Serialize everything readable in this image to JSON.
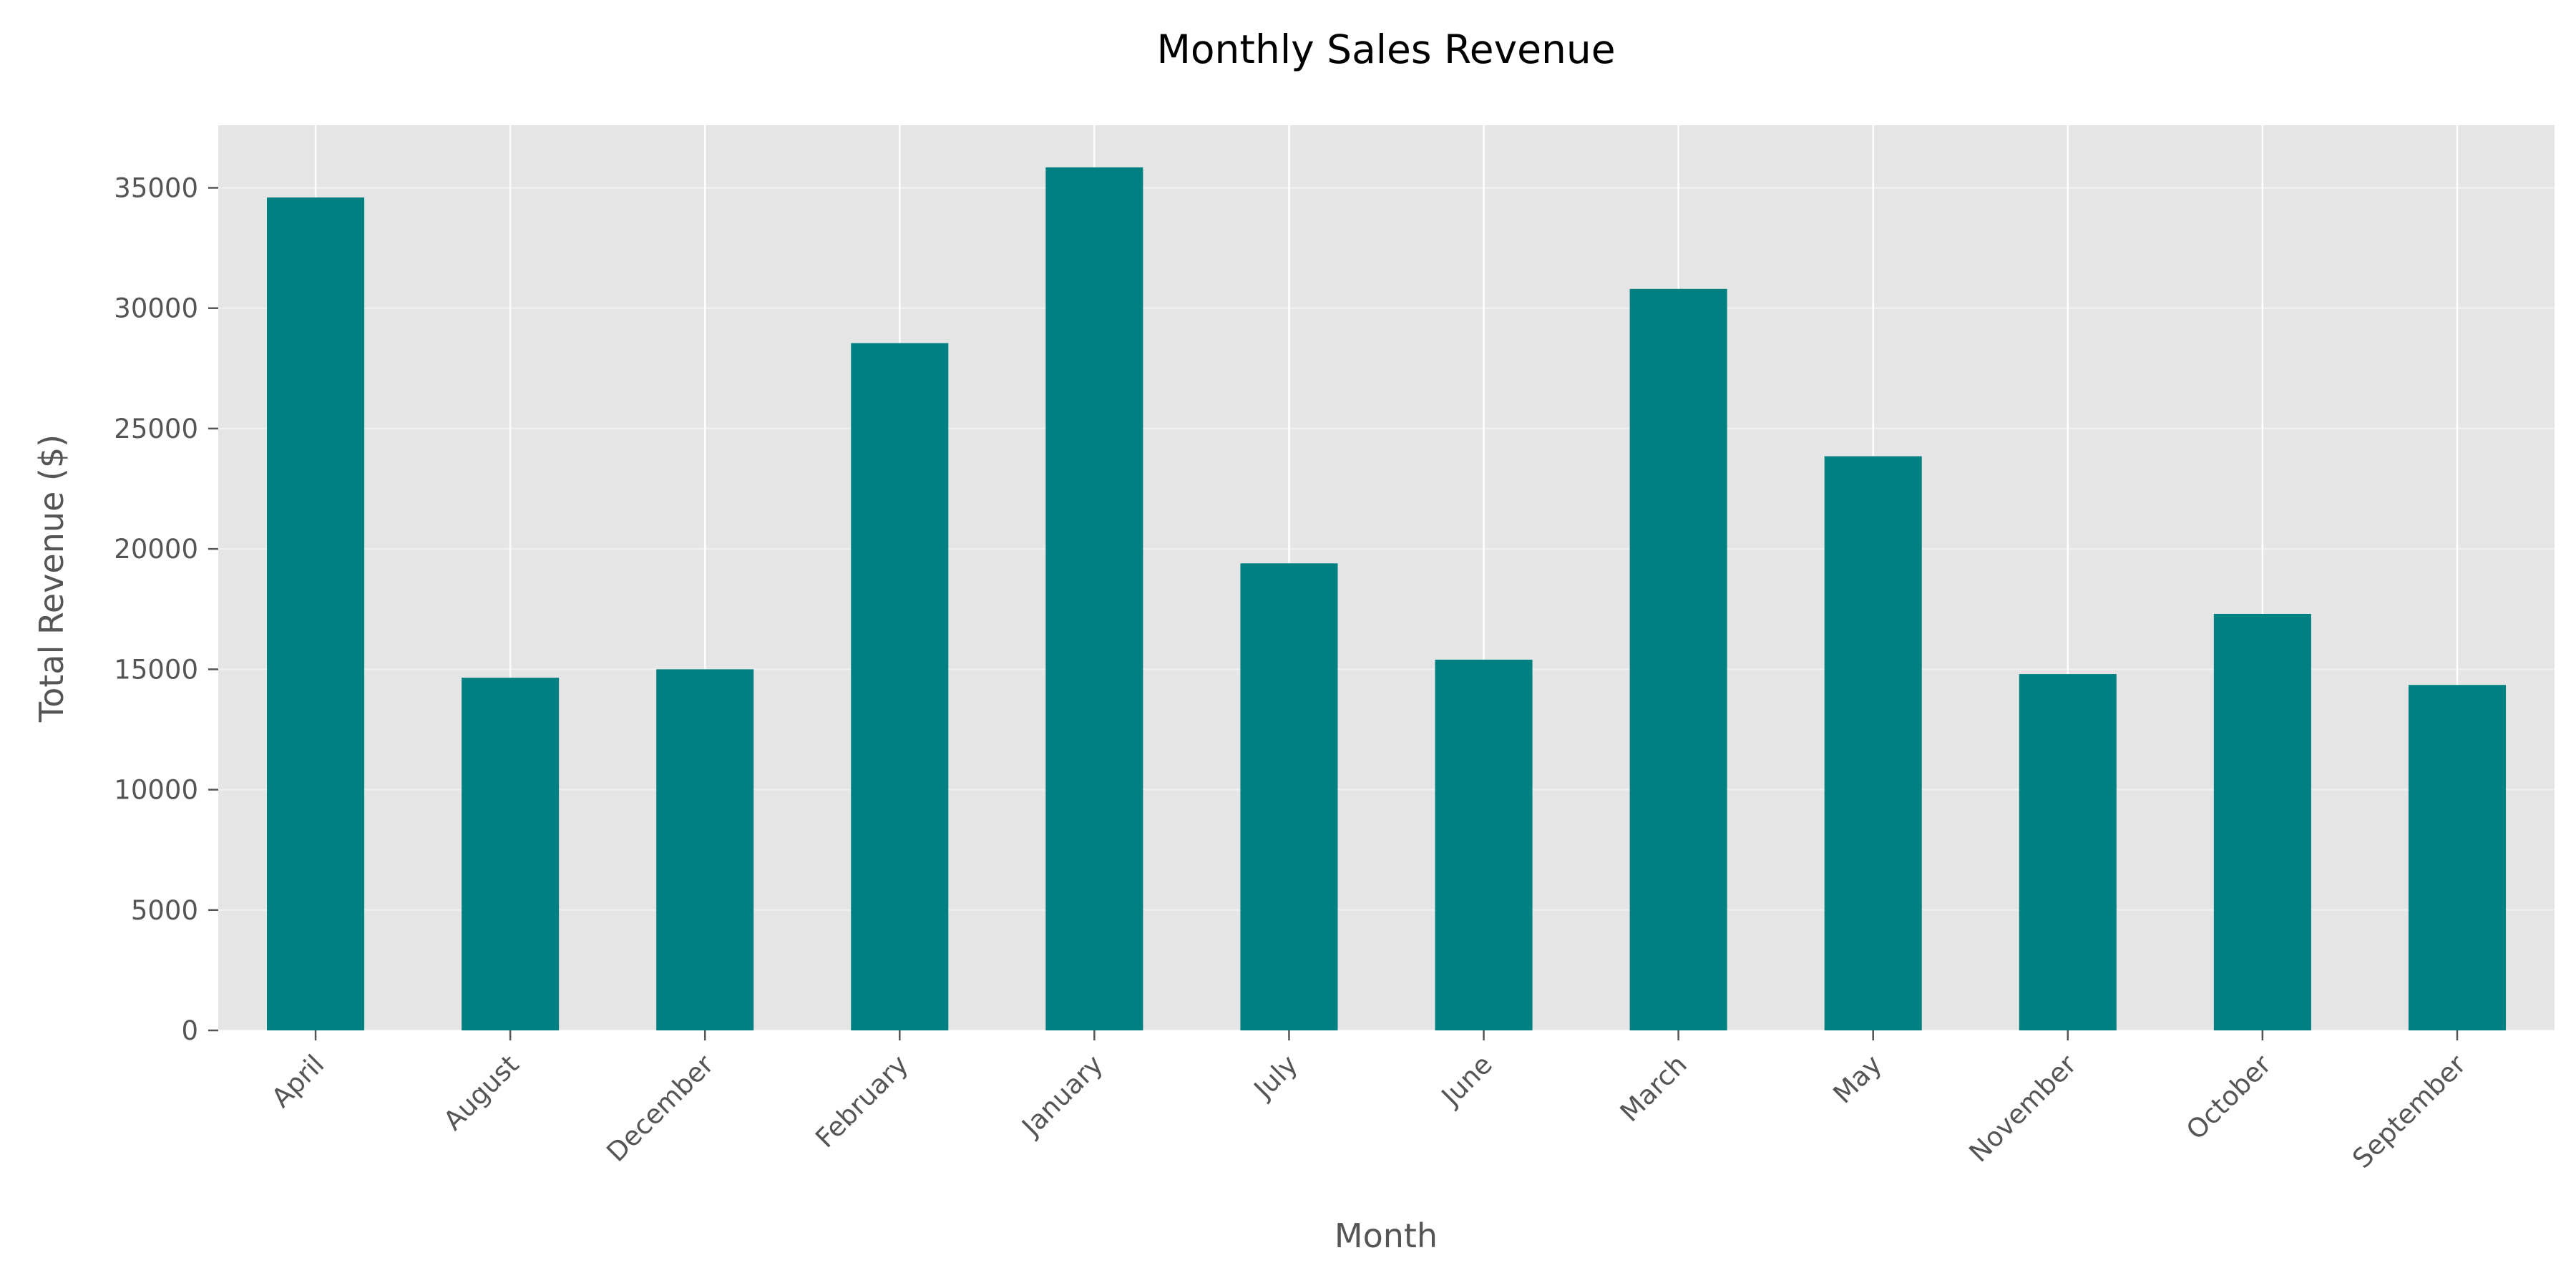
{
  "chart_data": {
    "type": "bar",
    "title": "Monthly Sales Revenue",
    "xlabel": "Month",
    "ylabel": "Total Revenue ($)",
    "categories": [
      "April",
      "August",
      "December",
      "February",
      "January",
      "July",
      "June",
      "March",
      "May",
      "November",
      "October",
      "September"
    ],
    "values": [
      34600,
      14650,
      15000,
      28550,
      35850,
      19400,
      15400,
      30800,
      23850,
      14800,
      17300,
      14350
    ],
    "ylim": [
      0,
      37600
    ],
    "yticks": [
      0,
      5000,
      10000,
      15000,
      20000,
      25000,
      30000,
      35000
    ],
    "grid": true,
    "colors": {
      "bar": "#008080",
      "plot_background": "#e5e5e5",
      "grid": "#ffffff"
    }
  }
}
